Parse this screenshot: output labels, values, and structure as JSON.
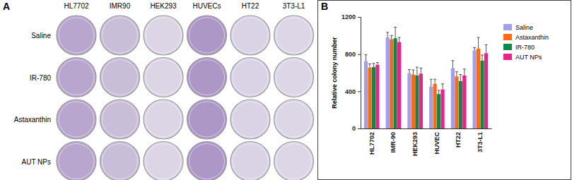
{
  "figure": {
    "panel_labels": [
      "A",
      "B"
    ]
  },
  "plates": {
    "columns": [
      "HL7702",
      "IMR90",
      "HEK293",
      "HUVECs",
      "HT22",
      "3T3-L1"
    ],
    "rows": [
      "Saline",
      "IR-780",
      "Astaxanthin",
      "AUT NPs"
    ]
  },
  "chart_data": {
    "type": "bar",
    "y_label": "Relative colony number",
    "categories": [
      "HL7702",
      "IMR-90",
      "HEK293",
      "HUVEC",
      "HT22",
      "3T3-L1"
    ],
    "series": [
      {
        "name": "Saline",
        "color": "#9f9fef",
        "values": [
          725,
          980,
          595,
          450,
          650,
          840
        ],
        "errors": [
          70,
          55,
          40,
          80,
          80,
          30
        ]
      },
      {
        "name": "Astaxanthin",
        "color": "#ff6a10",
        "values": [
          655,
          960,
          580,
          480,
          560,
          860
        ],
        "errors": [
          40,
          40,
          50,
          50,
          50,
          120
        ]
      },
      {
        "name": "IR-780",
        "color": "#0a8a4a",
        "values": [
          660,
          970,
          570,
          370,
          510,
          730
        ],
        "errors": [
          40,
          120,
          90,
          40,
          70,
          60
        ]
      },
      {
        "name": "AUT NPs",
        "color": "#f0208a",
        "values": [
          685,
          930,
          590,
          420,
          570,
          810
        ],
        "errors": [
          25,
          50,
          60,
          60,
          70,
          90
        ]
      }
    ],
    "ylim": [
      0,
      1200
    ],
    "yticks": [
      0,
      400,
      800,
      1200
    ],
    "legend": "right"
  }
}
